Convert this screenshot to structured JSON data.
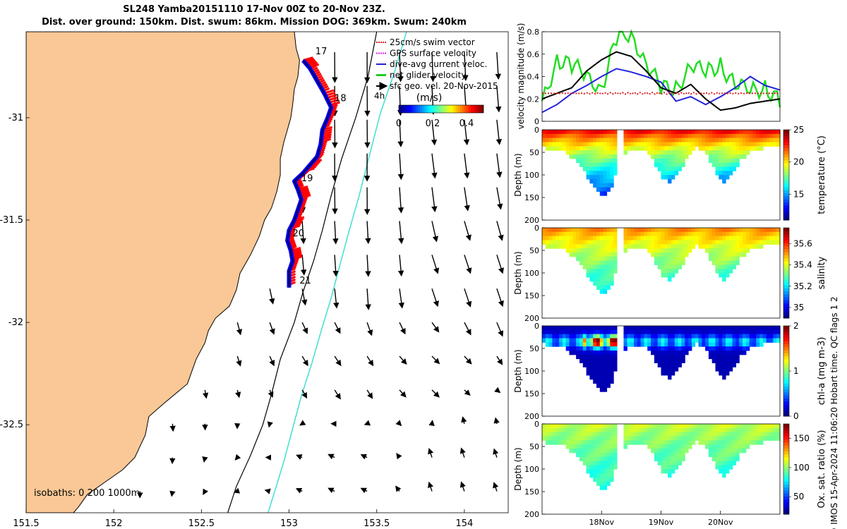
{
  "title_line1": "SL248 Yamba20151110 17-Nov 00Z to 20-Nov 23Z.",
  "title_line2": "Dist. over ground: 150km. Dist. swum: 86km. Mission DOG: 369km. Swum: 240km",
  "colors": {
    "land": "#f9c896",
    "track_red": "#ff0000",
    "track_blue": "#0000ff",
    "current": "#40e0d0"
  },
  "chart_data": [
    {
      "type": "scatter",
      "name": "map",
      "x_ticks": [
        "151.5",
        "152",
        "152.5",
        "153",
        "153.5",
        "154"
      ],
      "x_tick_values": [
        151.5,
        152,
        152.5,
        153,
        153.5,
        154
      ],
      "y_ticks": [
        "-31",
        "-31.5",
        "-32",
        "-32.5"
      ],
      "y_tick_values": [
        -31,
        -31.5,
        -32,
        -32.5
      ],
      "xlim": [
        151.5,
        154.25
      ],
      "ylim": [
        -32.93,
        -30.58
      ],
      "legend": [
        "25cm/s swim vector",
        "GPS surface velocity",
        "dive-avg current veloc.",
        "net glider velocity",
        "sfc geo. vel. 20-Nov-2015"
      ],
      "legend_extra": "4h",
      "colorbar": {
        "title": "(m/s)",
        "ticks": [
          "0",
          "0.2",
          "0.4"
        ],
        "range": [
          0,
          0.5
        ]
      },
      "isobath_label": "isobaths: 0  200  1000m",
      "day_labels": [
        {
          "text": "17",
          "lon": 153.15,
          "lat": -30.69
        },
        {
          "text": "18",
          "lon": 153.26,
          "lat": -30.92
        },
        {
          "text": "19",
          "lon": 153.07,
          "lat": -31.31
        },
        {
          "text": "20",
          "lon": 153.02,
          "lat": -31.58
        },
        {
          "text": "21",
          "lon": 153.06,
          "lat": -31.81
        }
      ],
      "track": [
        [
          153.08,
          -30.72
        ],
        [
          153.12,
          -30.76
        ],
        [
          153.16,
          -30.82
        ],
        [
          153.2,
          -30.88
        ],
        [
          153.24,
          -30.95
        ],
        [
          153.22,
          -31.0
        ],
        [
          153.19,
          -31.06
        ],
        [
          153.18,
          -31.13
        ],
        [
          153.16,
          -31.19
        ],
        [
          153.13,
          -31.22
        ],
        [
          153.08,
          -31.27
        ],
        [
          153.03,
          -31.31
        ],
        [
          153.05,
          -31.35
        ],
        [
          153.07,
          -31.4
        ],
        [
          153.05,
          -31.45
        ],
        [
          153.03,
          -31.5
        ],
        [
          153.0,
          -31.55
        ],
        [
          152.99,
          -31.6
        ],
        [
          153.01,
          -31.65
        ],
        [
          153.02,
          -31.7
        ],
        [
          153.0,
          -31.75
        ],
        [
          153.0,
          -31.83
        ]
      ],
      "coast": [
        [
          153.03,
          -30.58
        ],
        [
          153.04,
          -30.66
        ],
        [
          153.06,
          -30.72
        ],
        [
          153.05,
          -30.8
        ],
        [
          153.03,
          -30.86
        ],
        [
          153.02,
          -30.94
        ],
        [
          153.01,
          -31.0
        ],
        [
          152.99,
          -31.06
        ],
        [
          152.97,
          -31.12
        ],
        [
          152.95,
          -31.2
        ],
        [
          152.95,
          -31.28
        ],
        [
          152.93,
          -31.36
        ],
        [
          152.9,
          -31.44
        ],
        [
          152.86,
          -31.5
        ],
        [
          152.83,
          -31.58
        ],
        [
          152.78,
          -31.67
        ],
        [
          152.72,
          -31.76
        ],
        [
          152.7,
          -31.84
        ],
        [
          152.66,
          -31.92
        ],
        [
          152.58,
          -31.98
        ],
        [
          152.54,
          -32.04
        ],
        [
          152.52,
          -32.1
        ],
        [
          152.47,
          -32.18
        ],
        [
          152.42,
          -32.3
        ],
        [
          152.28,
          -32.4
        ],
        [
          152.2,
          -32.46
        ],
        [
          152.18,
          -32.55
        ],
        [
          152.12,
          -32.66
        ],
        [
          152.05,
          -32.72
        ],
        [
          151.95,
          -32.78
        ],
        [
          151.85,
          -32.84
        ],
        [
          151.8,
          -32.9
        ],
        [
          151.77,
          -32.93
        ]
      ],
      "isobath_200": [
        [
          153.5,
          -30.58
        ],
        [
          153.45,
          -30.8
        ],
        [
          153.38,
          -31.0
        ],
        [
          153.3,
          -31.2
        ],
        [
          153.24,
          -31.38
        ],
        [
          153.19,
          -31.55
        ],
        [
          153.14,
          -31.7
        ],
        [
          153.08,
          -31.85
        ],
        [
          153.03,
          -32.0
        ],
        [
          152.95,
          -32.18
        ],
        [
          152.9,
          -32.35
        ],
        [
          152.85,
          -32.5
        ],
        [
          152.78,
          -32.65
        ],
        [
          152.7,
          -32.8
        ],
        [
          152.65,
          -32.93
        ]
      ],
      "isobath_1000": [
        [
          153.67,
          -30.58
        ],
        [
          153.6,
          -30.78
        ],
        [
          153.52,
          -30.98
        ],
        [
          153.46,
          -31.18
        ],
        [
          153.4,
          -31.38
        ],
        [
          153.34,
          -31.56
        ],
        [
          153.29,
          -31.72
        ],
        [
          153.24,
          -31.88
        ],
        [
          153.18,
          -32.05
        ],
        [
          153.13,
          -32.2
        ],
        [
          153.07,
          -32.36
        ],
        [
          153.02,
          -32.52
        ],
        [
          152.97,
          -32.68
        ],
        [
          152.92,
          -32.82
        ],
        [
          152.88,
          -32.93
        ]
      ],
      "vector_samples": [
        {
          "lon": 153.45,
          "lat": -30.7,
          "u": 0.0,
          "v": -0.5
        },
        {
          "lon": 153.6,
          "lat": -30.7,
          "u": 0.02,
          "v": -0.48
        },
        {
          "lon": 153.45,
          "lat": -31.2,
          "u": 0.0,
          "v": -0.45
        },
        {
          "lon": 153.8,
          "lat": -31.2,
          "u": 0.05,
          "v": -0.4
        },
        {
          "lon": 153.45,
          "lat": -31.7,
          "u": 0.02,
          "v": -0.35
        },
        {
          "lon": 153.95,
          "lat": -31.7,
          "u": 0.1,
          "v": -0.3
        },
        {
          "lon": 153.3,
          "lat": -32.2,
          "u": 0.1,
          "v": -0.15
        },
        {
          "lon": 153.8,
          "lat": -32.2,
          "u": 0.12,
          "v": -0.12
        },
        {
          "lon": 153.3,
          "lat": -32.7,
          "u": -0.1,
          "v": 0.05
        },
        {
          "lon": 153.95,
          "lat": -32.7,
          "u": -0.05,
          "v": 0.15
        }
      ]
    },
    {
      "type": "line",
      "name": "velocity",
      "ylabel": "velocity magnitude (m/s)",
      "ylim": [
        0,
        0.8
      ],
      "y_ticks": [
        "0",
        "0.2",
        "0.4",
        "0.6",
        "0.8"
      ],
      "y_tick_values": [
        0,
        0.2,
        0.4,
        0.6,
        0.8
      ],
      "xlim": [
        0,
        4
      ],
      "x": [
        0,
        0.25,
        0.5,
        0.75,
        1,
        1.25,
        1.5,
        1.75,
        2,
        2.25,
        2.5,
        2.75,
        3,
        3.25,
        3.5,
        3.75,
        4
      ],
      "series": [
        {
          "name": "net glider velocity",
          "color": "#22dd22",
          "values": [
            0.18,
            0.5,
            0.55,
            0.4,
            0.25,
            0.8,
            0.75,
            0.5,
            0.35,
            0.25,
            0.5,
            0.48,
            0.45,
            0.35,
            0.3,
            0.25,
            0.22
          ]
        },
        {
          "name": "dive-avg current veloc.",
          "color": "#2222dd",
          "values": [
            0.08,
            0.15,
            0.25,
            0.32,
            0.4,
            0.47,
            0.44,
            0.4,
            0.35,
            0.18,
            0.22,
            0.15,
            0.22,
            0.3,
            0.4,
            0.32,
            0.28
          ]
        },
        {
          "name": "GPS surface velocity",
          "color": "#000000",
          "values": [
            0.2,
            0.25,
            0.3,
            0.45,
            0.55,
            0.62,
            0.58,
            0.45,
            0.3,
            0.25,
            0.33,
            0.2,
            0.1,
            0.12,
            0.16,
            0.18,
            0.2
          ]
        },
        {
          "name": "25cm/s swim vector",
          "color": "#dd2222",
          "values": [
            0.25,
            0.25,
            0.25,
            0.25,
            0.25,
            0.25,
            0.25,
            0.25,
            0.25,
            0.25,
            0.25,
            0.25,
            0.25,
            0.25,
            0.25,
            0.25,
            0.25
          ]
        }
      ]
    },
    {
      "type": "heatmap",
      "name": "temperature",
      "ylabel": "Depth (m)",
      "cblabel": "temperature (°C)",
      "y_ticks": [
        "0",
        "50",
        "100",
        "150",
        "200"
      ],
      "y_tick_values": [
        0,
        50,
        100,
        150,
        200
      ],
      "cb_ticks": [
        "15",
        "20",
        "25"
      ],
      "cb_tick_values": [
        15,
        20,
        25
      ],
      "crange": [
        11,
        25
      ],
      "surface_value": 24,
      "bottom_value": 13
    },
    {
      "type": "heatmap",
      "name": "salinity",
      "ylabel": "Depth (m)",
      "cblabel": "salinity",
      "y_ticks": [
        "0",
        "50",
        "100",
        "150",
        "200"
      ],
      "y_tick_values": [
        0,
        50,
        100,
        150,
        200
      ],
      "cb_ticks": [
        "35",
        "35.2",
        "35.4",
        "35.6"
      ],
      "cb_tick_values": [
        35,
        35.2,
        35.4,
        35.6
      ],
      "crange": [
        34.9,
        35.75
      ],
      "surface_value": 35.55,
      "bottom_value": 35.2
    },
    {
      "type": "heatmap",
      "name": "chla",
      "ylabel": "Depth (m)",
      "cblabel": "chl-a (mg m-3)",
      "y_ticks": [
        "0",
        "50",
        "100",
        "150",
        "200"
      ],
      "y_tick_values": [
        0,
        50,
        100,
        150,
        200
      ],
      "cb_ticks": [
        "0",
        "1",
        "2"
      ],
      "cb_tick_values": [
        0,
        1,
        2
      ],
      "crange": [
        0,
        2
      ],
      "surface_value": 0.6,
      "bottom_value": 0.05
    },
    {
      "type": "heatmap",
      "name": "oxygen",
      "ylabel": "Depth (m)",
      "cblabel": "Ox. sat. ratio (%)",
      "y_ticks": [
        "0",
        "50",
        "100",
        "150",
        "200"
      ],
      "y_tick_values": [
        0,
        50,
        100,
        150,
        200
      ],
      "cb_ticks": [
        "50",
        "100",
        "150"
      ],
      "cb_tick_values": [
        50,
        100,
        150
      ],
      "crange": [
        20,
        175
      ],
      "surface_value": 110,
      "bottom_value": 80
    }
  ],
  "time_axis": {
    "ticks": [
      "18Nov",
      "19Nov",
      "20Nov"
    ],
    "tick_values": [
      1,
      2,
      3
    ],
    "xlim": [
      0,
      4
    ]
  },
  "bathymetry": {
    "xs": [
      0,
      0.15,
      0.3,
      0.45,
      0.6,
      0.75,
      0.85,
      0.95,
      1.05,
      1.15,
      1.25,
      1.35,
      1.45,
      1.6,
      1.75,
      1.85,
      1.95,
      2.05,
      2.15,
      2.3,
      2.45,
      2.6,
      2.75,
      2.85,
      2.95,
      3.05,
      3.2,
      3.35,
      3.5,
      3.65,
      3.8,
      3.95,
      4.0
    ],
    "depth": [
      40,
      42,
      45,
      55,
      75,
      100,
      125,
      142,
      145,
      135,
      92,
      60,
      45,
      42,
      50,
      62,
      90,
      110,
      120,
      95,
      62,
      40,
      45,
      75,
      100,
      118,
      95,
      65,
      48,
      42,
      40,
      40,
      40
    ],
    "gap": [
      1.28,
      1.36
    ]
  },
  "credit": "© IMOS 15-Apr-2024 11:06:20 Hobart time. QC flags 1  2"
}
